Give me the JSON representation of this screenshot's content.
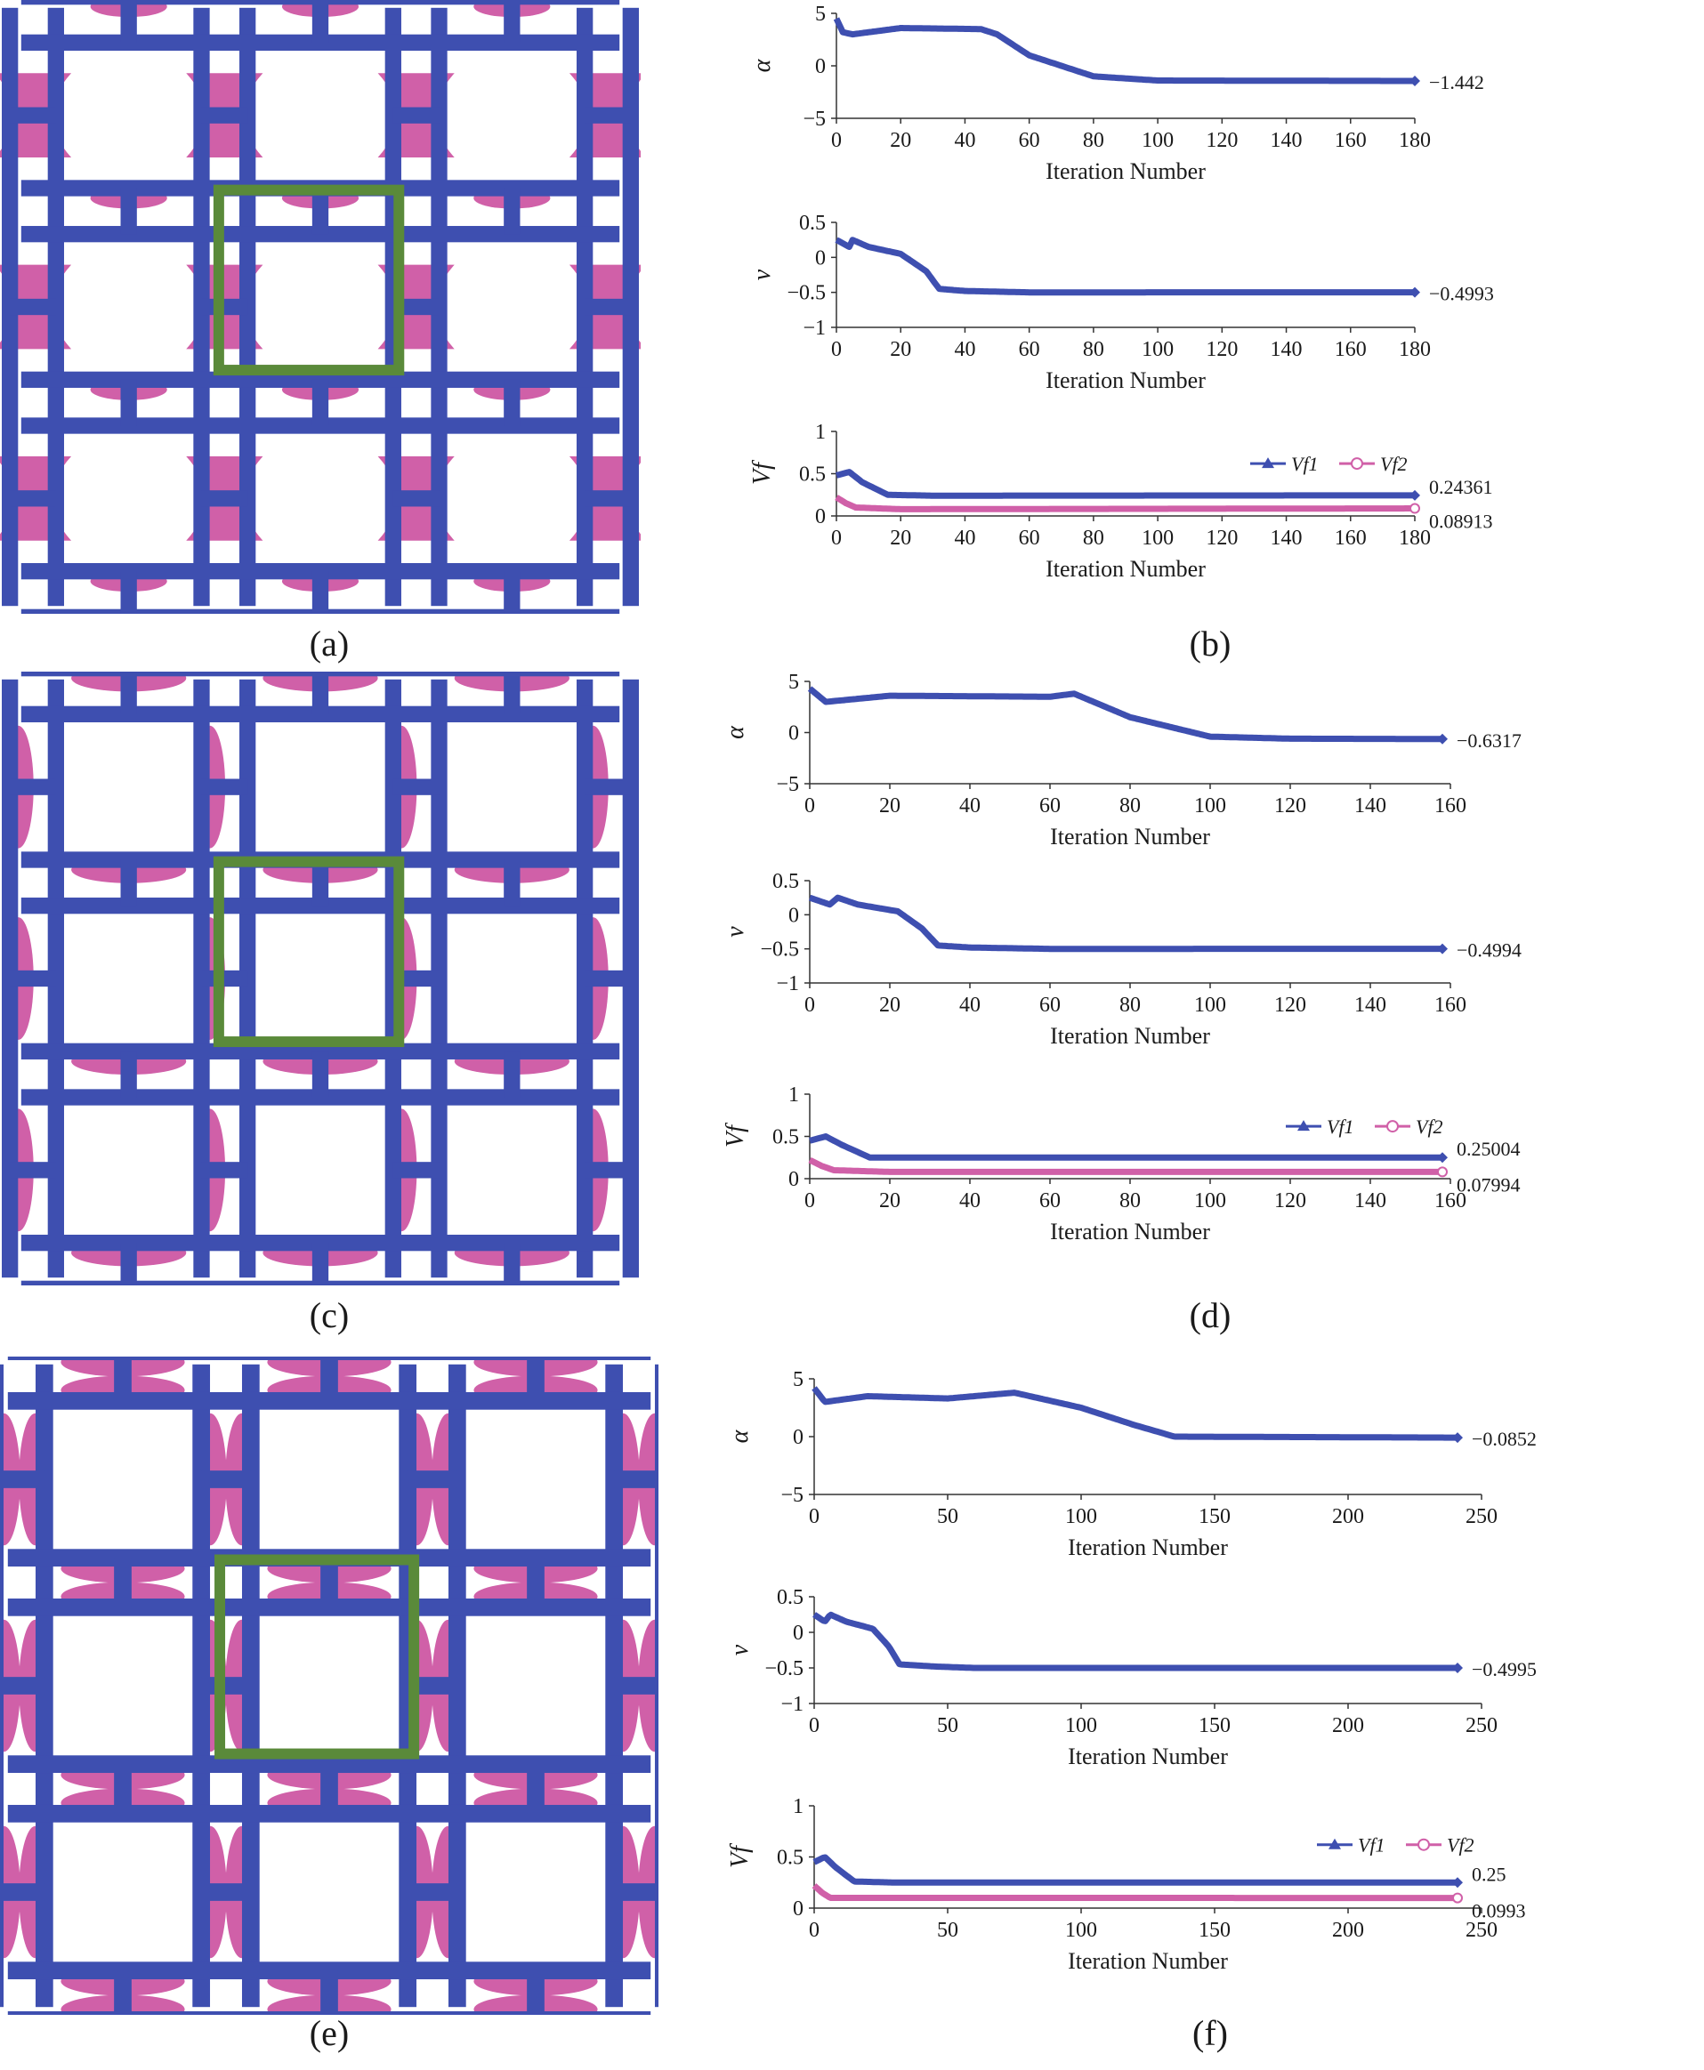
{
  "figure": {
    "colors": {
      "material1": "#3e4fb0",
      "material2": "#d060a8",
      "frame": "#5a8a3a",
      "axis": "#333333"
    },
    "rows": [
      {
        "structure_caption": "(a)",
        "plot_caption": "(b)",
        "charts": [
          {
            "type": "line",
            "ylabel": "α",
            "xlabel": "Iteration Number",
            "x_ticks": [
              "0",
              "20",
              "40",
              "60",
              "80",
              "100",
              "120",
              "140",
              "160",
              "180"
            ],
            "x_max": 180,
            "y_ticks": [
              "5",
              "0",
              "−5"
            ],
            "ylim": [
              -5,
              5
            ],
            "series": [
              {
                "name": "α",
                "color": "#3e4fb0",
                "profile": [
                  [
                    0,
                    4.5
                  ],
                  [
                    2,
                    3.2
                  ],
                  [
                    5,
                    3.0
                  ],
                  [
                    20,
                    3.6
                  ],
                  [
                    45,
                    3.5
                  ],
                  [
                    50,
                    3.0
                  ],
                  [
                    60,
                    1.0
                  ],
                  [
                    80,
                    -1.0
                  ],
                  [
                    100,
                    -1.4
                  ],
                  [
                    180,
                    -1.442
                  ]
                ],
                "end_label": "−1.442"
              }
            ]
          },
          {
            "type": "line",
            "ylabel": "ν",
            "xlabel": "Iteration Number",
            "x_ticks": [
              "0",
              "20",
              "40",
              "60",
              "80",
              "100",
              "120",
              "140",
              "160",
              "180"
            ],
            "x_max": 180,
            "y_ticks": [
              "0.5",
              "0",
              "−0.5",
              "−1"
            ],
            "ylim": [
              -1,
              0.5
            ],
            "series": [
              {
                "name": "ν",
                "color": "#3e4fb0",
                "profile": [
                  [
                    0,
                    0.25
                  ],
                  [
                    4,
                    0.15
                  ],
                  [
                    5,
                    0.25
                  ],
                  [
                    10,
                    0.15
                  ],
                  [
                    20,
                    0.05
                  ],
                  [
                    28,
                    -0.2
                  ],
                  [
                    32,
                    -0.45
                  ],
                  [
                    40,
                    -0.48
                  ],
                  [
                    60,
                    -0.5
                  ],
                  [
                    180,
                    -0.4993
                  ]
                ],
                "end_label": "−0.4993"
              }
            ]
          },
          {
            "type": "line",
            "ylabel": "Vf",
            "xlabel": "Iteration Number",
            "x_ticks": [
              "0",
              "20",
              "40",
              "60",
              "80",
              "100",
              "120",
              "140",
              "160",
              "180"
            ],
            "x_max": 180,
            "y_ticks": [
              "1",
              "0.5",
              "0"
            ],
            "ylim": [
              0,
              1
            ],
            "legend": [
              "Vf1",
              "Vf2"
            ],
            "series": [
              {
                "name": "Vf1",
                "color": "#3e4fb0",
                "profile": [
                  [
                    0,
                    0.48
                  ],
                  [
                    4,
                    0.52
                  ],
                  [
                    8,
                    0.4
                  ],
                  [
                    16,
                    0.25
                  ],
                  [
                    30,
                    0.24
                  ],
                  [
                    180,
                    0.24361
                  ]
                ],
                "end_label": "0.24361"
              },
              {
                "name": "Vf2",
                "color": "#d060a8",
                "profile": [
                  [
                    0,
                    0.22
                  ],
                  [
                    3,
                    0.15
                  ],
                  [
                    6,
                    0.1
                  ],
                  [
                    20,
                    0.08
                  ],
                  [
                    180,
                    0.08913
                  ]
                ],
                "end_label": "0.08913"
              }
            ]
          }
        ]
      },
      {
        "structure_caption": "(c)",
        "plot_caption": "(d)",
        "charts": [
          {
            "type": "line",
            "ylabel": "α",
            "xlabel": "Iteration Number",
            "x_ticks": [
              "0",
              "20",
              "40",
              "60",
              "80",
              "100",
              "120",
              "140",
              "160"
            ],
            "x_max": 160,
            "y_ticks": [
              "5",
              "0",
              "−5"
            ],
            "ylim": [
              -5,
              5
            ],
            "series": [
              {
                "name": "α",
                "color": "#3e4fb0",
                "profile": [
                  [
                    0,
                    4.3
                  ],
                  [
                    4,
                    3.0
                  ],
                  [
                    20,
                    3.6
                  ],
                  [
                    60,
                    3.5
                  ],
                  [
                    66,
                    3.8
                  ],
                  [
                    80,
                    1.5
                  ],
                  [
                    100,
                    -0.4
                  ],
                  [
                    120,
                    -0.6
                  ],
                  [
                    158,
                    -0.6317
                  ]
                ],
                "end_label": "−0.6317"
              }
            ]
          },
          {
            "type": "line",
            "ylabel": "ν",
            "xlabel": "Iteration Number",
            "x_ticks": [
              "0",
              "20",
              "40",
              "60",
              "80",
              "100",
              "120",
              "140",
              "160"
            ],
            "x_max": 160,
            "y_ticks": [
              "0.5",
              "0",
              "−0.5",
              "−1"
            ],
            "ylim": [
              -1,
              0.5
            ],
            "series": [
              {
                "name": "ν",
                "color": "#3e4fb0",
                "profile": [
                  [
                    0,
                    0.25
                  ],
                  [
                    5,
                    0.15
                  ],
                  [
                    7,
                    0.25
                  ],
                  [
                    12,
                    0.15
                  ],
                  [
                    22,
                    0.05
                  ],
                  [
                    28,
                    -0.2
                  ],
                  [
                    32,
                    -0.45
                  ],
                  [
                    40,
                    -0.48
                  ],
                  [
                    60,
                    -0.5
                  ],
                  [
                    158,
                    -0.4994
                  ]
                ],
                "end_label": "−0.4994"
              }
            ]
          },
          {
            "type": "line",
            "ylabel": "Vf",
            "xlabel": "Iteration Number",
            "x_ticks": [
              "0",
              "20",
              "40",
              "60",
              "80",
              "100",
              "120",
              "140",
              "160"
            ],
            "x_max": 160,
            "y_ticks": [
              "1",
              "0.5",
              "0"
            ],
            "ylim": [
              0,
              1
            ],
            "legend": [
              "Vf1",
              "Vf2"
            ],
            "series": [
              {
                "name": "Vf1",
                "color": "#3e4fb0",
                "profile": [
                  [
                    0,
                    0.45
                  ],
                  [
                    4,
                    0.5
                  ],
                  [
                    8,
                    0.4
                  ],
                  [
                    15,
                    0.25
                  ],
                  [
                    30,
                    0.25
                  ],
                  [
                    158,
                    0.25004
                  ]
                ],
                "end_label": "0.25004"
              },
              {
                "name": "Vf2",
                "color": "#d060a8",
                "profile": [
                  [
                    0,
                    0.22
                  ],
                  [
                    3,
                    0.15
                  ],
                  [
                    6,
                    0.1
                  ],
                  [
                    20,
                    0.08
                  ],
                  [
                    158,
                    0.07994
                  ]
                ],
                "end_label": "0.07994"
              }
            ]
          }
        ]
      },
      {
        "structure_caption": "(e)",
        "plot_caption": "(f)",
        "charts": [
          {
            "type": "line",
            "ylabel": "α",
            "xlabel": "Iteration Number",
            "x_ticks": [
              "0",
              "50",
              "100",
              "150",
              "200",
              "250"
            ],
            "x_max": 250,
            "y_ticks": [
              "5",
              "0",
              "−5"
            ],
            "ylim": [
              -5,
              5
            ],
            "series": [
              {
                "name": "α",
                "color": "#3e4fb0",
                "profile": [
                  [
                    0,
                    4.2
                  ],
                  [
                    4,
                    3.0
                  ],
                  [
                    20,
                    3.5
                  ],
                  [
                    50,
                    3.3
                  ],
                  [
                    75,
                    3.8
                  ],
                  [
                    100,
                    2.5
                  ],
                  [
                    120,
                    1.0
                  ],
                  [
                    135,
                    0.0
                  ],
                  [
                    241,
                    -0.0852
                  ]
                ],
                "end_label": "−0.0852"
              }
            ]
          },
          {
            "type": "line",
            "ylabel": "ν",
            "xlabel": "Iteration Number",
            "x_ticks": [
              "0",
              "50",
              "100",
              "150",
              "200",
              "250"
            ],
            "x_max": 250,
            "y_ticks": [
              "0.5",
              "0",
              "−0.5",
              "−1"
            ],
            "ylim": [
              -1,
              0.5
            ],
            "series": [
              {
                "name": "ν",
                "color": "#3e4fb0",
                "profile": [
                  [
                    0,
                    0.25
                  ],
                  [
                    4,
                    0.15
                  ],
                  [
                    6,
                    0.25
                  ],
                  [
                    12,
                    0.15
                  ],
                  [
                    22,
                    0.05
                  ],
                  [
                    28,
                    -0.2
                  ],
                  [
                    32,
                    -0.45
                  ],
                  [
                    45,
                    -0.48
                  ],
                  [
                    60,
                    -0.5
                  ],
                  [
                    241,
                    -0.4995
                  ]
                ],
                "end_label": "−0.4995"
              }
            ]
          },
          {
            "type": "line",
            "ylabel": "Vf",
            "xlabel": "Iteration Number",
            "x_ticks": [
              "0",
              "50",
              "100",
              "150",
              "200",
              "250"
            ],
            "x_max": 250,
            "y_ticks": [
              "1",
              "0.5",
              "0"
            ],
            "ylim": [
              0,
              1
            ],
            "legend": [
              "Vf1",
              "Vf2"
            ],
            "series": [
              {
                "name": "Vf1",
                "color": "#3e4fb0",
                "profile": [
                  [
                    0,
                    0.45
                  ],
                  [
                    4,
                    0.5
                  ],
                  [
                    8,
                    0.4
                  ],
                  [
                    15,
                    0.26
                  ],
                  [
                    30,
                    0.25
                  ],
                  [
                    241,
                    0.25
                  ]
                ],
                "end_label": "0.25"
              },
              {
                "name": "Vf2",
                "color": "#d060a8",
                "profile": [
                  [
                    0,
                    0.22
                  ],
                  [
                    3,
                    0.15
                  ],
                  [
                    6,
                    0.1
                  ],
                  [
                    20,
                    0.1
                  ],
                  [
                    241,
                    0.0993
                  ]
                ],
                "end_label": "0.0993"
              }
            ]
          }
        ]
      }
    ]
  }
}
